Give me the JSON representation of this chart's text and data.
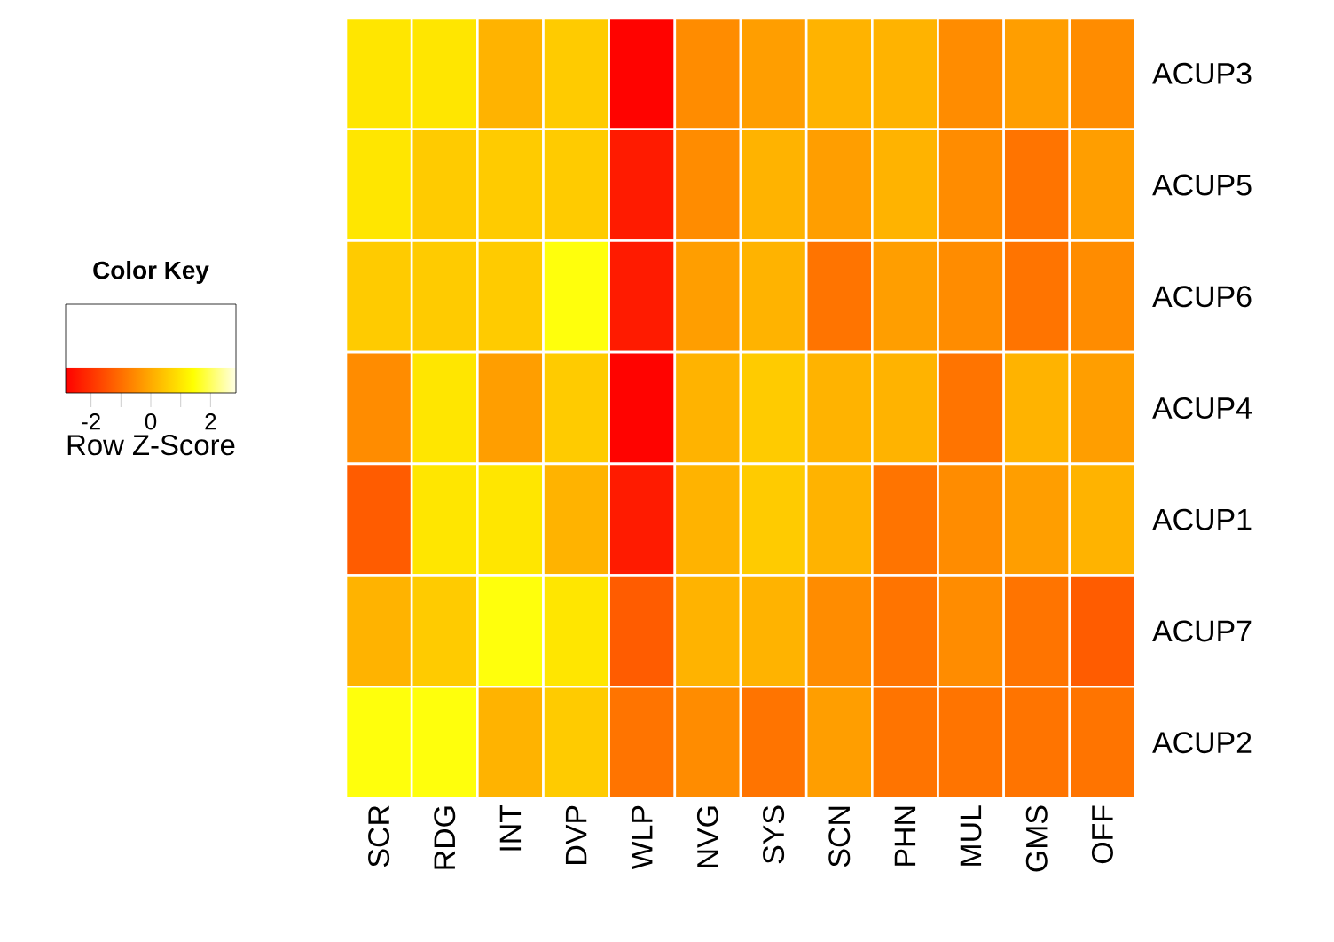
{
  "chart_data": {
    "type": "heatmap",
    "categories": [
      "SCR",
      "RDG",
      "INT",
      "DVP",
      "WLP",
      "NVG",
      "SYS",
      "SCN",
      "PHN",
      "MUL",
      "GMS",
      "OFF"
    ],
    "y_categories": [
      "ACUP3",
      "ACUP5",
      "ACUP6",
      "ACUP4",
      "ACUP1",
      "ACUP7",
      "ACUP2"
    ],
    "cells": [
      [
        1.0,
        1.0,
        0.15,
        0.55,
        -2.8,
        -0.5,
        -0.2,
        0.15,
        0.15,
        -0.5,
        -0.2,
        -0.5
      ],
      [
        1.0,
        0.55,
        0.55,
        0.55,
        -2.4,
        -0.5,
        0.15,
        -0.2,
        0.15,
        -0.5,
        -0.9,
        -0.2
      ],
      [
        0.55,
        0.55,
        0.55,
        1.5,
        -2.4,
        -0.2,
        0.15,
        -0.9,
        -0.2,
        -0.5,
        -0.9,
        -0.5
      ],
      [
        -0.5,
        1.0,
        -0.2,
        0.55,
        -2.8,
        0.15,
        0.55,
        0.15,
        0.15,
        -0.9,
        0.15,
        -0.2
      ],
      [
        -1.3,
        1.0,
        1.0,
        0.15,
        -2.4,
        0.15,
        0.55,
        0.15,
        -0.9,
        -0.5,
        -0.2,
        0.15
      ],
      [
        0.15,
        0.55,
        1.5,
        1.0,
        -1.3,
        0.15,
        0.15,
        -0.5,
        -0.9,
        -0.5,
        -0.9,
        -1.3
      ],
      [
        1.5,
        1.5,
        0.15,
        0.55,
        -0.9,
        -0.5,
        -0.9,
        -0.2,
        -0.9,
        -0.9,
        -0.9,
        -0.9
      ]
    ],
    "clim": [
      -2.85,
      2.85
    ],
    "cticks": [
      -2,
      {
        "value": -1,
        "label": null
      },
      0,
      {
        "value": 1,
        "label": null
      },
      2
    ],
    "legend_title": "Color Key",
    "clabel": "Row Z-Score"
  }
}
